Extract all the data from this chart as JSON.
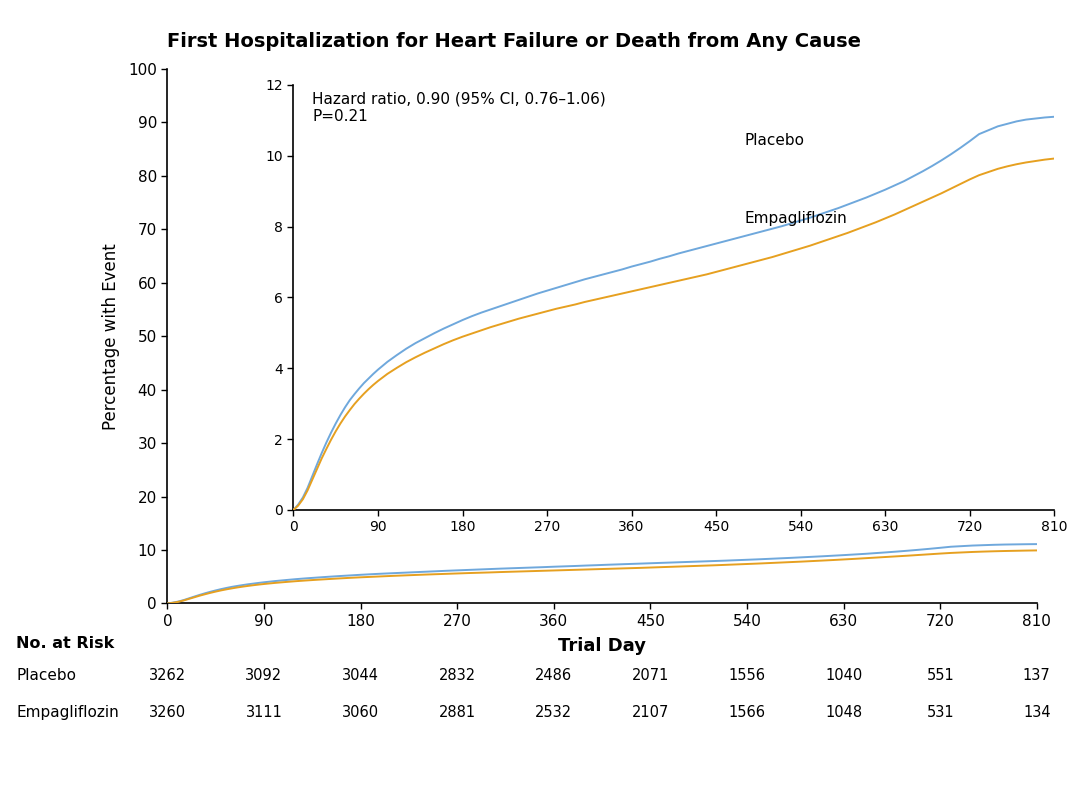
{
  "title": "First Hospitalization for Heart Failure or Death from Any Cause",
  "xlabel": "Trial Day",
  "ylabel": "Percentage with Event",
  "placebo_color": "#6fa8dc",
  "empagliflozin_color": "#e6a020",
  "hazard_text_line1": "Hazard ratio, 0.90 (95% CI, 0.76–1.06)",
  "hazard_text_line2": "P=0.21",
  "x_ticks": [
    0,
    90,
    180,
    270,
    360,
    450,
    540,
    630,
    720,
    810
  ],
  "y_main_ticks": [
    0,
    10,
    20,
    30,
    40,
    50,
    60,
    70,
    80,
    90,
    100
  ],
  "y_inset_ticks": [
    0,
    2,
    4,
    6,
    8,
    10,
    12
  ],
  "risk_labels": [
    "No. at Risk",
    "Placebo",
    "Empagliflozin"
  ],
  "placebo_risk": [
    3262,
    3092,
    3044,
    2832,
    2486,
    2071,
    1556,
    1040,
    551,
    137
  ],
  "empagliflozin_risk": [
    3260,
    3111,
    3060,
    2881,
    2532,
    2107,
    1566,
    1048,
    531,
    134
  ],
  "curve_x": [
    0,
    5,
    10,
    15,
    20,
    25,
    30,
    35,
    40,
    45,
    50,
    55,
    60,
    65,
    70,
    75,
    80,
    85,
    90,
    95,
    100,
    110,
    120,
    130,
    140,
    150,
    160,
    170,
    180,
    190,
    200,
    210,
    220,
    230,
    240,
    250,
    260,
    270,
    280,
    290,
    300,
    310,
    320,
    330,
    340,
    350,
    360,
    370,
    380,
    390,
    400,
    410,
    420,
    430,
    440,
    450,
    460,
    470,
    480,
    490,
    500,
    510,
    520,
    530,
    540,
    550,
    560,
    570,
    580,
    590,
    600,
    610,
    620,
    630,
    640,
    650,
    660,
    670,
    680,
    690,
    700,
    710,
    720,
    730,
    740,
    750,
    760,
    770,
    780,
    790,
    800,
    810
  ],
  "placebo_y": [
    0.0,
    0.15,
    0.35,
    0.62,
    0.95,
    1.28,
    1.6,
    1.9,
    2.18,
    2.44,
    2.68,
    2.9,
    3.1,
    3.27,
    3.43,
    3.58,
    3.71,
    3.84,
    3.96,
    4.07,
    4.18,
    4.37,
    4.55,
    4.71,
    4.85,
    4.99,
    5.12,
    5.24,
    5.36,
    5.47,
    5.57,
    5.66,
    5.75,
    5.84,
    5.93,
    6.02,
    6.11,
    6.19,
    6.27,
    6.35,
    6.43,
    6.51,
    6.58,
    6.65,
    6.72,
    6.79,
    6.87,
    6.94,
    7.01,
    7.09,
    7.16,
    7.24,
    7.31,
    7.38,
    7.45,
    7.52,
    7.59,
    7.66,
    7.73,
    7.8,
    7.87,
    7.94,
    8.01,
    8.09,
    8.17,
    8.25,
    8.34,
    8.43,
    8.52,
    8.62,
    8.72,
    8.82,
    8.93,
    9.04,
    9.16,
    9.28,
    9.42,
    9.56,
    9.71,
    9.87,
    10.04,
    10.22,
    10.41,
    10.61,
    10.72,
    10.83,
    10.9,
    10.97,
    11.02,
    11.05,
    11.08,
    11.1
  ],
  "empagliflozin_y": [
    0.0,
    0.12,
    0.3,
    0.55,
    0.85,
    1.15,
    1.45,
    1.72,
    1.98,
    2.22,
    2.44,
    2.64,
    2.82,
    2.99,
    3.14,
    3.28,
    3.41,
    3.53,
    3.64,
    3.74,
    3.84,
    4.01,
    4.17,
    4.31,
    4.44,
    4.56,
    4.68,
    4.79,
    4.89,
    4.98,
    5.07,
    5.16,
    5.24,
    5.32,
    5.4,
    5.47,
    5.54,
    5.61,
    5.68,
    5.74,
    5.8,
    5.87,
    5.93,
    5.99,
    6.05,
    6.11,
    6.17,
    6.23,
    6.29,
    6.35,
    6.41,
    6.47,
    6.53,
    6.59,
    6.65,
    6.72,
    6.79,
    6.86,
    6.93,
    7.0,
    7.07,
    7.14,
    7.22,
    7.3,
    7.38,
    7.46,
    7.55,
    7.64,
    7.73,
    7.82,
    7.92,
    8.02,
    8.12,
    8.23,
    8.34,
    8.46,
    8.58,
    8.7,
    8.82,
    8.94,
    9.07,
    9.2,
    9.33,
    9.45,
    9.54,
    9.63,
    9.7,
    9.76,
    9.81,
    9.85,
    9.89,
    9.92
  ]
}
